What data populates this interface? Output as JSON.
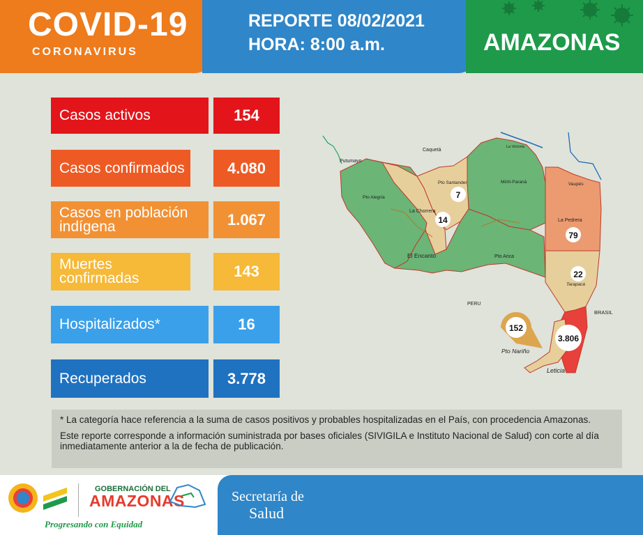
{
  "header": {
    "title": "COVID-19",
    "subtitle": "CORONAVIRUS",
    "report": "REPORTE 08/02/2021",
    "time": "HORA: 8:00 a.m.",
    "region": "AMAZONAS"
  },
  "stats": [
    {
      "label": "Casos activos",
      "value": "154",
      "label_color": "#e3151b",
      "value_color": "#e3151b"
    },
    {
      "label": "Casos confirmados",
      "value": "4.080",
      "label_color": "#ee5a24",
      "value_color": "#ee5a24"
    },
    {
      "label": "Casos en población indígena",
      "value": "1.067",
      "label_color": "#f29134",
      "value_color": "#f29134"
    },
    {
      "label": "Muertes confirmadas",
      "value": "143",
      "label_color": "#f6b938",
      "value_color": "#f6b938"
    },
    {
      "label": "Hospitalizados*",
      "value": "16",
      "label_color": "#3aa0ea",
      "value_color": "#3aa0ea"
    },
    {
      "label": "Recuperados",
      "value": "3.778",
      "label_color": "#1f72c0",
      "value_color": "#1f72c0"
    }
  ],
  "map": {
    "labels": {
      "caqueta": "Caquetá",
      "putumayo": "Putumayo",
      "la_victoria": "La Victoria",
      "pto_santander": "Pto Santander",
      "mirit_parana": "Mirití-Paraná",
      "vaupes": "Vaupés",
      "pto_alegria": "Pto Alegría",
      "la_chorrera": "La Chorrera",
      "la_pedrera": "La Pedrera",
      "el_encanto": "El Encanto",
      "pto_arica": "Pto Arica",
      "tarapaca": "Tarapacá",
      "peru": "PERU",
      "brasil": "BRASIL",
      "pto_narino": "Pto Nariño",
      "leticia": "Leticia"
    },
    "counts": {
      "pto_santander": "7",
      "la_chorrera": "14",
      "la_pedrera": "79",
      "tarapaca": "22",
      "pto_narino": "152",
      "leticia": "3.806"
    },
    "colors": {
      "green": "#6bb577",
      "tan": "#e7cf9b",
      "salmon": "#ec9b70",
      "red": "#e8403a",
      "gold": "#dca54e"
    }
  },
  "notes": {
    "line1": "* La categoría hace referencia a la suma de casos positivos y probables hospitalizadas en el País, con procedencia Amazonas.",
    "line2": "Este reporte corresponde a información suministrada por bases oficiales (SIVIGILA e Instituto Nacional de Salud) con corte al día inmediatamente anterior a la de fecha de publicación."
  },
  "footer": {
    "gob_line1": "GOBERNACIÓN DEL",
    "gob_line2": "AMAZONAS",
    "slogan": "Progresando con Equidad",
    "secretaria": "Secretaría de",
    "salud": "Salud"
  }
}
